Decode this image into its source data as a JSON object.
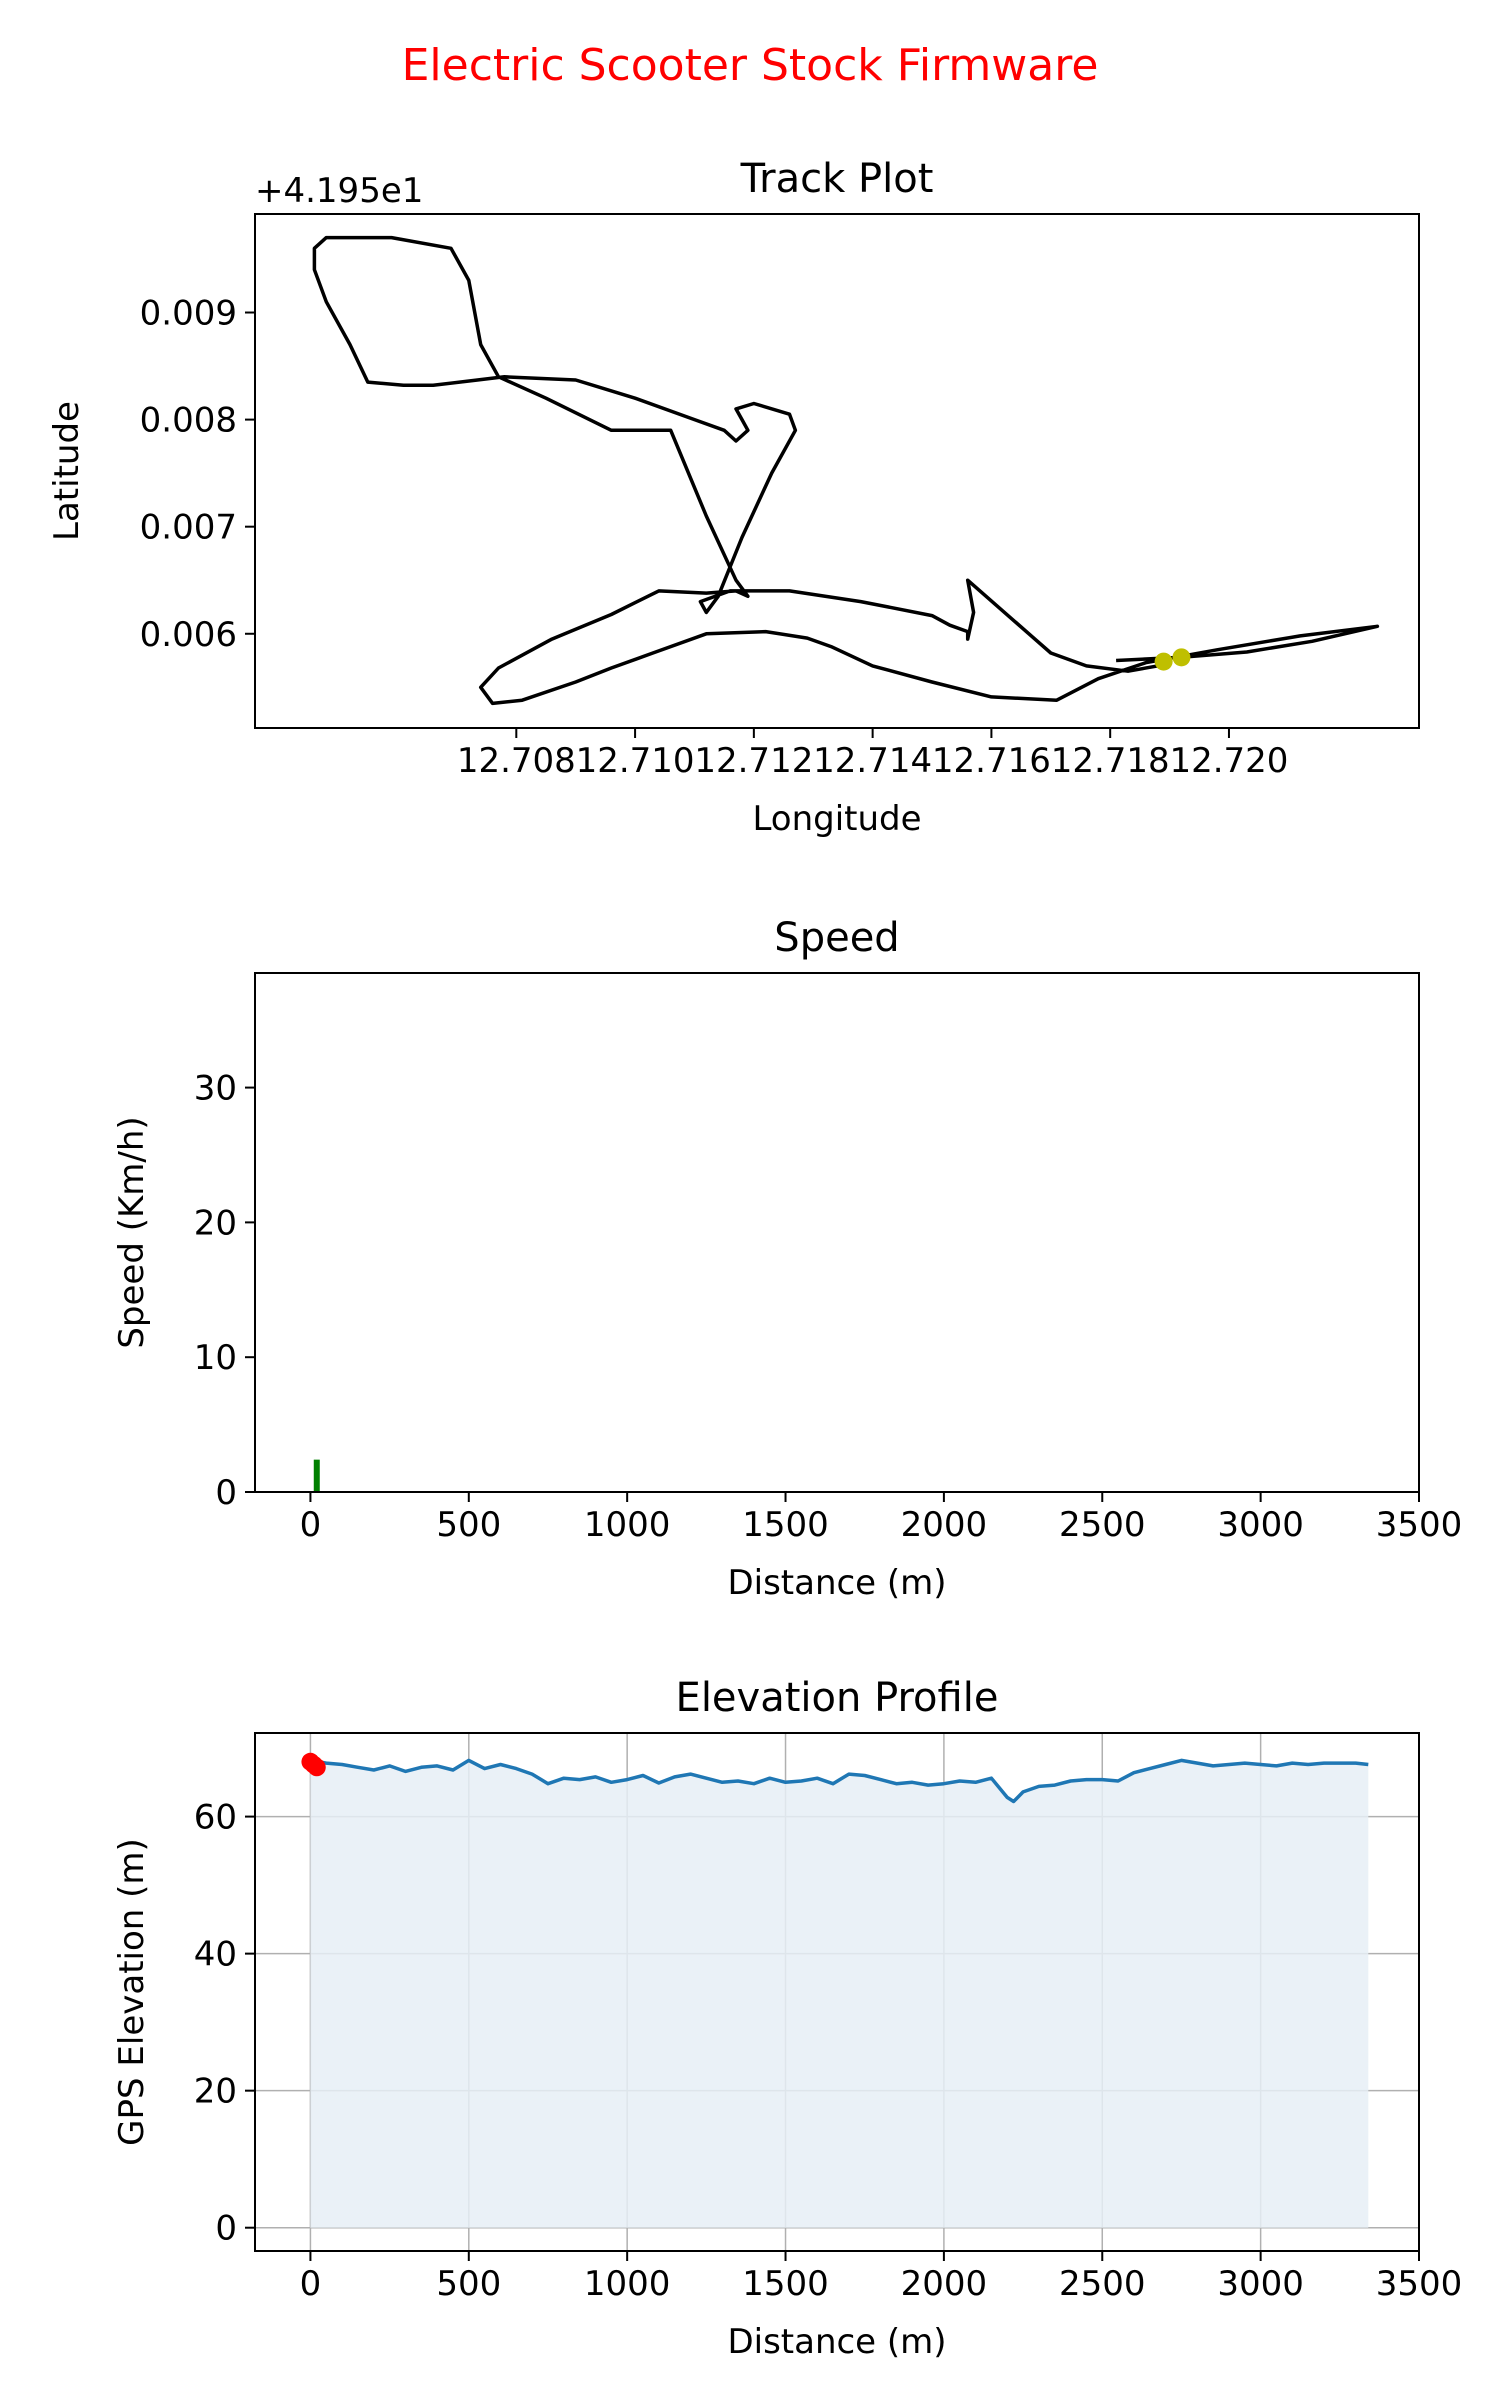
{
  "figure": {
    "title": "Electric Scooter Stock Firmware",
    "title_color": "#ff0000"
  },
  "chart_data": [
    {
      "type": "line",
      "title": "Track Plot",
      "xlabel": "Longitude",
      "ylabel": "Latitude",
      "offset_text": "+4.195e1",
      "xlim": [
        12.7036,
        12.7232
      ],
      "ylim": [
        0.00512,
        0.00992
      ],
      "x_ticks": [
        12.708,
        12.71,
        12.712,
        12.714,
        12.716,
        12.718,
        12.72
      ],
      "x_tick_labels": [
        "12.708",
        "12.710",
        "12.712",
        "12.714",
        "12.716",
        "12.718",
        "12.720"
      ],
      "y_ticks": [
        0.006,
        0.007,
        0.008,
        0.009
      ],
      "y_tick_labels": [
        "0.006",
        "0.007",
        "0.008",
        "0.009"
      ],
      "grid": false,
      "line_color": "#000000",
      "track": {
        "x": [
          12.7181,
          12.7192,
          12.7203,
          12.7214,
          12.7225,
          12.7212,
          12.7198,
          12.7186,
          12.7178,
          12.7171,
          12.716,
          12.715,
          12.714,
          12.7133,
          12.7129,
          12.7122,
          12.7112,
          12.7103,
          12.7096,
          12.709,
          12.7081,
          12.7076,
          12.7074,
          12.7077,
          12.7086,
          12.7096,
          12.7104,
          12.7112,
          12.7117,
          12.7119,
          12.7117,
          12.7112,
          12.7106,
          12.7096,
          12.7085,
          12.7077,
          12.7074,
          12.7072,
          12.7069,
          12.7059,
          12.7048,
          12.7046,
          12.7046,
          12.7048,
          12.7052,
          12.7055,
          12.7061,
          12.7066,
          12.7078,
          12.709,
          12.71,
          12.711,
          12.7115,
          12.7117,
          12.7119,
          12.7118,
          12.7117,
          12.712,
          12.7126,
          12.7127,
          12.7123,
          12.7118,
          12.7114,
          12.7112,
          12.7111,
          12.7116,
          12.7126,
          12.7138,
          12.715,
          12.7153,
          12.7156,
          12.7156,
          12.7157,
          12.7156,
          12.717,
          12.7176,
          12.7183,
          12.719
        ],
        "y": [
          0.00575,
          0.00578,
          0.00583,
          0.00593,
          0.00607,
          0.00598,
          0.00585,
          0.00573,
          0.00558,
          0.00538,
          0.00541,
          0.00555,
          0.0057,
          0.00588,
          0.00596,
          0.00602,
          0.006,
          0.00582,
          0.00568,
          0.00555,
          0.00538,
          0.00535,
          0.0055,
          0.00568,
          0.00595,
          0.00618,
          0.0064,
          0.00638,
          0.0064,
          0.00635,
          0.0065,
          0.0071,
          0.0079,
          0.0079,
          0.0082,
          0.0084,
          0.0087,
          0.0093,
          0.0096,
          0.0097,
          0.0097,
          0.0096,
          0.0094,
          0.0091,
          0.0087,
          0.00835,
          0.00832,
          0.00832,
          0.0084,
          0.00837,
          0.0082,
          0.008,
          0.0079,
          0.0078,
          0.0079,
          0.008,
          0.0081,
          0.00815,
          0.00805,
          0.0079,
          0.0075,
          0.0069,
          0.00635,
          0.0062,
          0.0063,
          0.0064,
          0.0064,
          0.0063,
          0.00617,
          0.00608,
          0.00602,
          0.00595,
          0.0062,
          0.0065,
          0.00582,
          0.0057,
          0.00565,
          0.00572
        ]
      },
      "markers": {
        "color": "#bfbf00",
        "x": [
          12.7189,
          12.7192
        ],
        "y": [
          0.00574,
          0.00578
        ]
      }
    },
    {
      "type": "bar",
      "title": "Speed",
      "xlabel": "Distance (m)",
      "ylabel": "Speed (Km/h)",
      "xlim": [
        -175,
        3500
      ],
      "ylim": [
        0,
        38.5
      ],
      "x_ticks": [
        0,
        500,
        1000,
        1500,
        2000,
        2500,
        3000,
        3500
      ],
      "x_tick_labels": [
        "0",
        "500",
        "1000",
        "1500",
        "2000",
        "2500",
        "3000",
        "3500"
      ],
      "y_ticks": [
        0,
        10,
        20,
        30
      ],
      "y_tick_labels": [
        "0",
        "10",
        "20",
        "30"
      ],
      "grid": false,
      "bar_color": "#008000",
      "bars": [
        {
          "x": 20,
          "value": 2.4
        }
      ]
    },
    {
      "type": "area",
      "title": "Elevation Profile",
      "xlabel": "Distance (m)",
      "ylabel": "GPS Elevation (m)",
      "xlim": [
        -175,
        3500
      ],
      "ylim": [
        -3.4,
        72.2
      ],
      "x_ticks": [
        0,
        500,
        1000,
        1500,
        2000,
        2500,
        3000,
        3500
      ],
      "x_tick_labels": [
        "0",
        "500",
        "1000",
        "1500",
        "2000",
        "2500",
        "3000",
        "3500"
      ],
      "y_ticks": [
        0,
        20,
        40,
        60
      ],
      "y_tick_labels": [
        "0",
        "20",
        "40",
        "60"
      ],
      "grid": true,
      "line_color": "#1f77b4",
      "fill_color": "#e6eef6",
      "series": {
        "x": [
          0,
          50,
          100,
          150,
          200,
          250,
          300,
          350,
          400,
          450,
          500,
          550,
          600,
          650,
          700,
          750,
          800,
          850,
          900,
          950,
          1000,
          1050,
          1100,
          1150,
          1200,
          1250,
          1300,
          1350,
          1400,
          1450,
          1500,
          1550,
          1600,
          1650,
          1700,
          1750,
          1800,
          1850,
          1900,
          1950,
          2000,
          2050,
          2100,
          2150,
          2200,
          2220,
          2250,
          2300,
          2350,
          2400,
          2450,
          2500,
          2550,
          2600,
          2650,
          2700,
          2750,
          2800,
          2850,
          2900,
          2950,
          3000,
          3050,
          3100,
          3150,
          3200,
          3250,
          3300,
          3340
        ],
        "y": [
          68.2,
          67.8,
          67.6,
          67.2,
          66.8,
          67.4,
          66.6,
          67.2,
          67.4,
          66.8,
          68.2,
          67.0,
          67.6,
          67.0,
          66.2,
          64.8,
          65.6,
          65.4,
          65.8,
          65.0,
          65.4,
          66.0,
          64.9,
          65.8,
          66.2,
          65.6,
          65.0,
          65.2,
          64.8,
          65.6,
          65.0,
          65.2,
          65.6,
          64.8,
          66.2,
          66.0,
          65.4,
          64.8,
          65.0,
          64.6,
          64.8,
          65.2,
          65.0,
          65.6,
          62.8,
          62.2,
          63.6,
          64.4,
          64.6,
          65.2,
          65.4,
          65.4,
          65.2,
          66.4,
          67.0,
          67.6,
          68.2,
          67.8,
          67.4,
          67.6,
          67.8,
          67.6,
          67.4,
          67.8,
          67.6,
          67.8,
          67.8,
          67.8,
          67.6
        ]
      },
      "markers": {
        "color": "#ff0000",
        "x": [
          0,
          10,
          20
        ],
        "y": [
          68.0,
          67.6,
          67.2
        ]
      }
    }
  ]
}
